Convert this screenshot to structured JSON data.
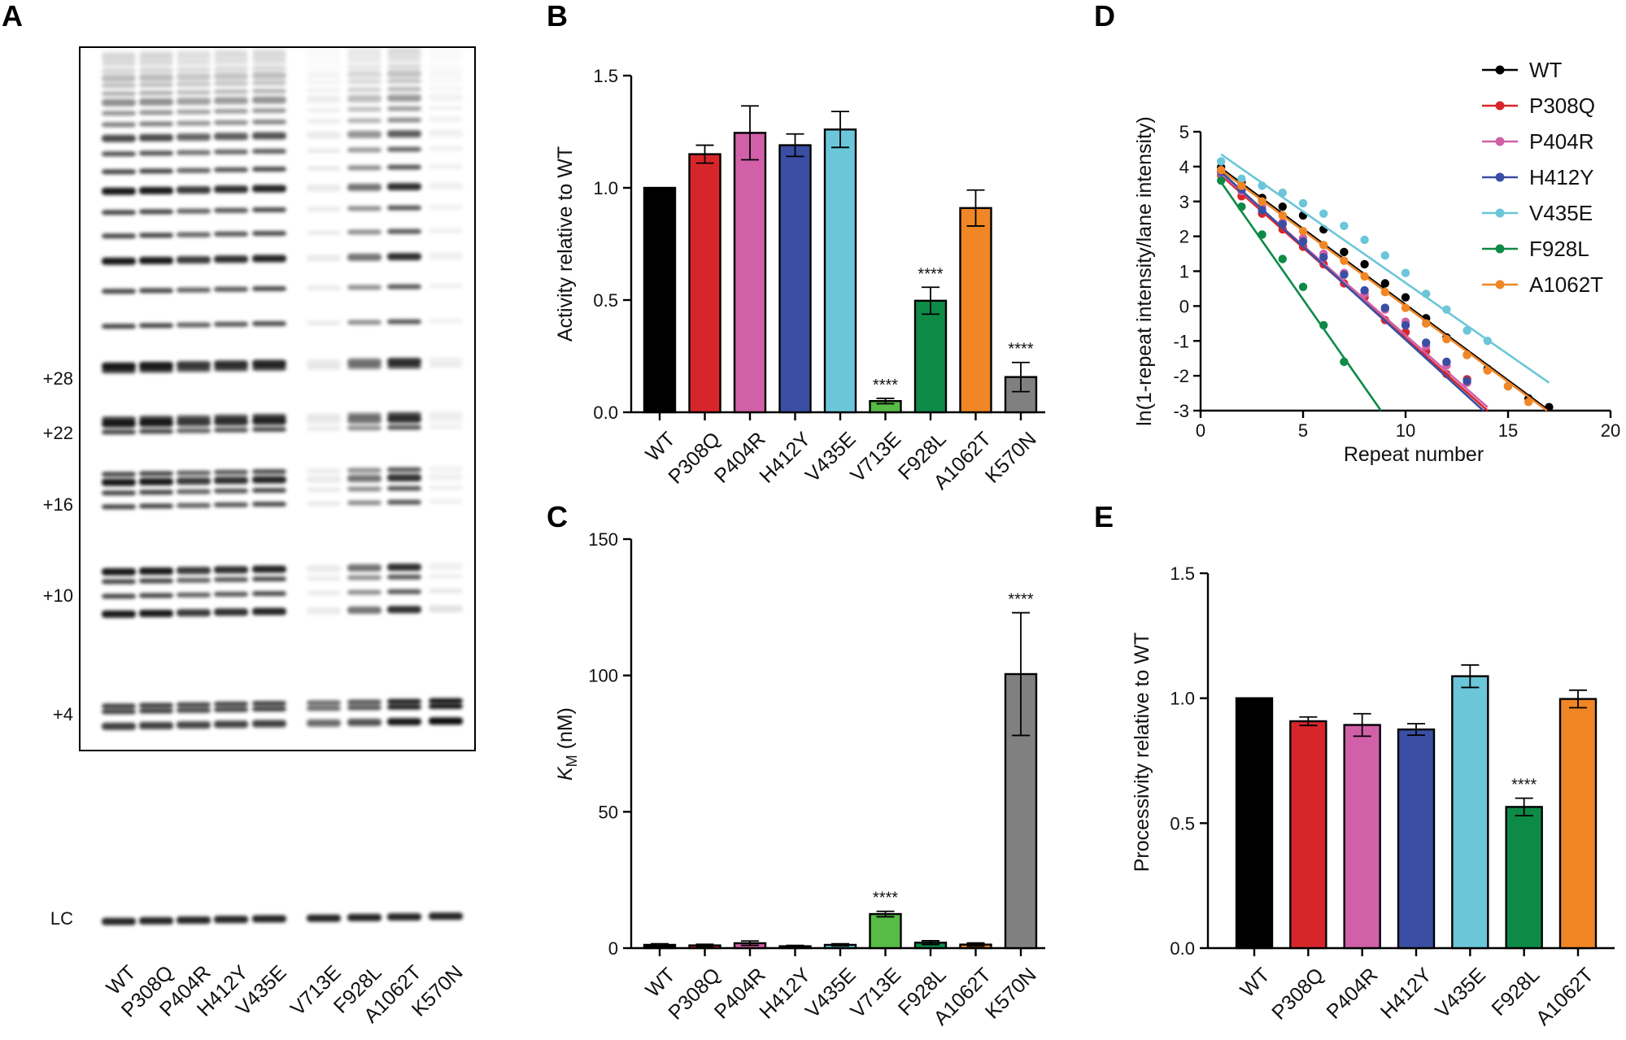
{
  "panel_letters": {
    "a": "A",
    "b": "B",
    "c": "C",
    "d": "D",
    "e": "E"
  },
  "colors": {
    "WT": "#000000",
    "P308Q": "#d7262b",
    "P404R": "#d160a8",
    "H412Y": "#3a4fa3",
    "V435E": "#6bc6d9",
    "V713E": "#57bb46",
    "F928L": "#0e8a47",
    "A1062T": "#f08626",
    "K570N": "#808080"
  },
  "chart_data": [
    {
      "id": "A",
      "type": "gel",
      "lanes": [
        "WT",
        "P308Q",
        "P404R",
        "H412Y",
        "V435E",
        "V713E",
        "F928L",
        "A1062T",
        "K570N"
      ],
      "band_labels": [
        "+28",
        "+22",
        "+16",
        "+10",
        "+4",
        "LC"
      ],
      "lane_intensity": [
        1.0,
        1.0,
        0.85,
        0.9,
        0.95,
        0.15,
        0.6,
        0.9,
        0.12
      ]
    },
    {
      "id": "B",
      "type": "bar",
      "categories": [
        "WT",
        "P308Q",
        "P404R",
        "H412Y",
        "V435E",
        "V713E",
        "F928L",
        "A1062T",
        "K570N"
      ],
      "values": [
        1.0,
        1.15,
        1.245,
        1.19,
        1.26,
        0.05,
        0.497,
        0.91,
        0.157
      ],
      "errors": [
        0,
        0.04,
        0.12,
        0.05,
        0.08,
        0.012,
        0.06,
        0.08,
        0.065
      ],
      "significance": [
        "",
        "",
        "",
        "",
        "",
        "****",
        "****",
        "",
        "****"
      ],
      "ylabel": "Activity relative to WT",
      "ylim": [
        0,
        1.5
      ],
      "yticks": [
        "0.0",
        "0.5",
        "1.0",
        "1.5"
      ]
    },
    {
      "id": "C",
      "type": "bar",
      "categories": [
        "WT",
        "P308Q",
        "P404R",
        "H412Y",
        "V435E",
        "V713E",
        "F928L",
        "A1062T",
        "K570N"
      ],
      "values": [
        1.2,
        1.0,
        1.8,
        0.7,
        1.2,
        12.5,
        2.0,
        1.3,
        100.5
      ],
      "errors": [
        0.4,
        0.4,
        0.8,
        0.3,
        0.4,
        1.0,
        0.7,
        0.6,
        22.5
      ],
      "significance": [
        "",
        "",
        "",
        "",
        "",
        "****",
        "",
        "",
        "****"
      ],
      "ylabel_main": "K",
      "ylabel_sub": "M",
      "ylabel_unit": " (nM)",
      "ylim": [
        0,
        150
      ],
      "yticks": [
        "0",
        "50",
        "100",
        "150"
      ]
    },
    {
      "id": "D",
      "type": "scatter",
      "xlabel": "Repeat number",
      "ylabel": "ln(1-repeat intensity/lane intensity)",
      "xlim": [
        0,
        20
      ],
      "ylim": [
        -3,
        5
      ],
      "xticks": [
        "0",
        "5",
        "10",
        "15",
        "20"
      ],
      "yticks": [
        "-3",
        "-2",
        "-1",
        "0",
        "1",
        "2",
        "3",
        "4",
        "5"
      ],
      "series": [
        {
          "name": "WT",
          "fit": [
            1,
            3.95,
            17,
            -3.0
          ],
          "x": [
            1,
            2,
            3,
            4,
            5,
            6,
            7,
            8,
            9,
            10,
            11,
            12,
            13,
            14,
            15,
            16,
            17
          ],
          "y": [
            3.98,
            3.55,
            3.1,
            2.85,
            2.6,
            2.2,
            1.55,
            1.2,
            0.65,
            0.25,
            -0.35,
            -0.9,
            -1.4,
            -1.8,
            -2.3,
            -2.65,
            -2.9
          ]
        },
        {
          "name": "P308Q",
          "fit": [
            1,
            3.75,
            14,
            -3.0
          ],
          "x": [
            1,
            2,
            3,
            4,
            5,
            6,
            7,
            8,
            9,
            10,
            11,
            12,
            13
          ],
          "y": [
            3.75,
            3.15,
            2.65,
            2.2,
            1.7,
            1.2,
            0.65,
            0.25,
            -0.4,
            -0.75,
            -1.3,
            -1.95,
            -2.1
          ]
        },
        {
          "name": "P404R",
          "fit": [
            1,
            3.8,
            14,
            -2.9
          ],
          "x": [
            1,
            2,
            3,
            4,
            5,
            6,
            7,
            8,
            9,
            10,
            11,
            12,
            13
          ],
          "y": [
            3.8,
            3.3,
            2.85,
            2.4,
            1.95,
            1.5,
            0.95,
            0.35,
            -0.1,
            -0.45,
            -1.15,
            -1.7,
            -2.2
          ]
        },
        {
          "name": "H412Y",
          "fit": [
            1,
            3.85,
            13.8,
            -3.0
          ],
          "x": [
            1,
            2,
            3,
            4,
            5,
            6,
            7,
            8,
            9,
            10,
            11,
            12,
            13
          ],
          "y": [
            3.85,
            3.35,
            2.75,
            2.35,
            1.85,
            1.4,
            0.9,
            0.45,
            -0.05,
            -0.55,
            -1.05,
            -1.6,
            -2.15
          ]
        },
        {
          "name": "V435E",
          "fit": [
            1,
            4.35,
            17,
            -2.2
          ],
          "x": [
            1,
            2,
            3,
            4,
            5,
            6,
            7,
            8,
            9,
            10,
            11,
            12,
            13,
            14
          ],
          "y": [
            4.15,
            3.65,
            3.45,
            3.25,
            2.95,
            2.65,
            2.3,
            1.9,
            1.45,
            0.95,
            0.35,
            -0.1,
            -0.7,
            -1.0
          ]
        },
        {
          "name": "F928L",
          "fit": [
            1,
            3.55,
            8.8,
            -3.0
          ],
          "x": [
            1,
            2,
            3,
            4,
            5,
            6,
            7
          ],
          "y": [
            3.6,
            2.85,
            2.05,
            1.35,
            0.55,
            -0.55,
            -1.6
          ]
        },
        {
          "name": "A1062T",
          "fit": [
            1,
            3.9,
            16.9,
            -3.0
          ],
          "x": [
            1,
            2,
            3,
            4,
            5,
            6,
            7,
            8,
            9,
            10,
            11,
            12,
            13,
            14,
            15,
            16
          ],
          "y": [
            3.9,
            3.45,
            3.0,
            2.6,
            2.15,
            1.75,
            1.3,
            0.85,
            0.4,
            -0.05,
            -0.5,
            -0.95,
            -1.4,
            -1.85,
            -2.3,
            -2.75
          ]
        }
      ]
    },
    {
      "id": "E",
      "type": "bar",
      "categories": [
        "WT",
        "P308Q",
        "P404R",
        "H412Y",
        "V435E",
        "F928L",
        "A1062T"
      ],
      "values": [
        1.0,
        0.908,
        0.893,
        0.875,
        1.088,
        0.565,
        0.997
      ],
      "errors": [
        0,
        0.017,
        0.045,
        0.023,
        0.045,
        0.035,
        0.035
      ],
      "significance": [
        "",
        "",
        "",
        "",
        "",
        "****",
        ""
      ],
      "ylabel": "Processivity relative to WT",
      "ylim": [
        0,
        1.5
      ],
      "yticks": [
        "0.0",
        "0.5",
        "1.0",
        "1.5"
      ]
    }
  ]
}
